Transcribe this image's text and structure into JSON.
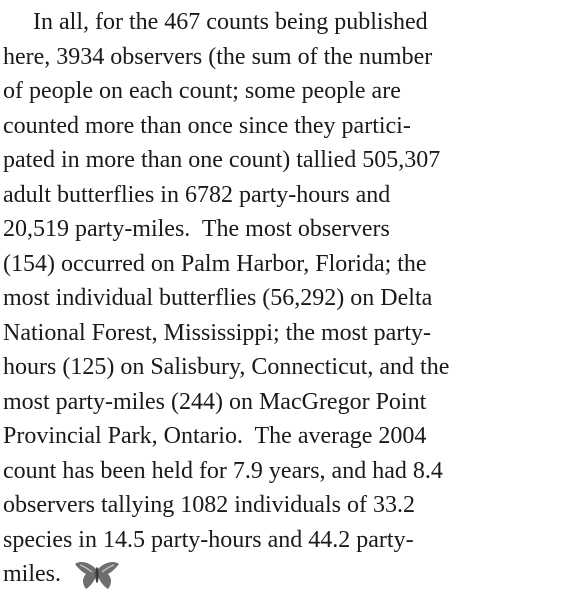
{
  "paragraph": {
    "lines": [
      "In all, for the 467 counts being published",
      "here, 3934 observers (the sum of the number",
      "of people on each count; some people are",
      "counted more than once since they partici-",
      "pated in more than one count) tallied 505,307",
      "adult butterflies in 6782 party-hours and",
      "20,519 party-miles.  The most observers",
      "(154) occurred on Palm Harbor, Florida; the",
      "most individual butterflies (56,292) on Delta",
      "National Forest, Mississippi; the most party-",
      "hours (125) on Salisbury, Connecticut, and the",
      "most party-miles (244) on MacGregor Point",
      "Provincial Park, Ontario.  The average 2004",
      "count has been held for 7.9 years, and had 8.4",
      "observers tallying 1082 individuals of 33.2",
      "species in 14.5 party-hours and 44.2 party-",
      "miles."
    ]
  }
}
